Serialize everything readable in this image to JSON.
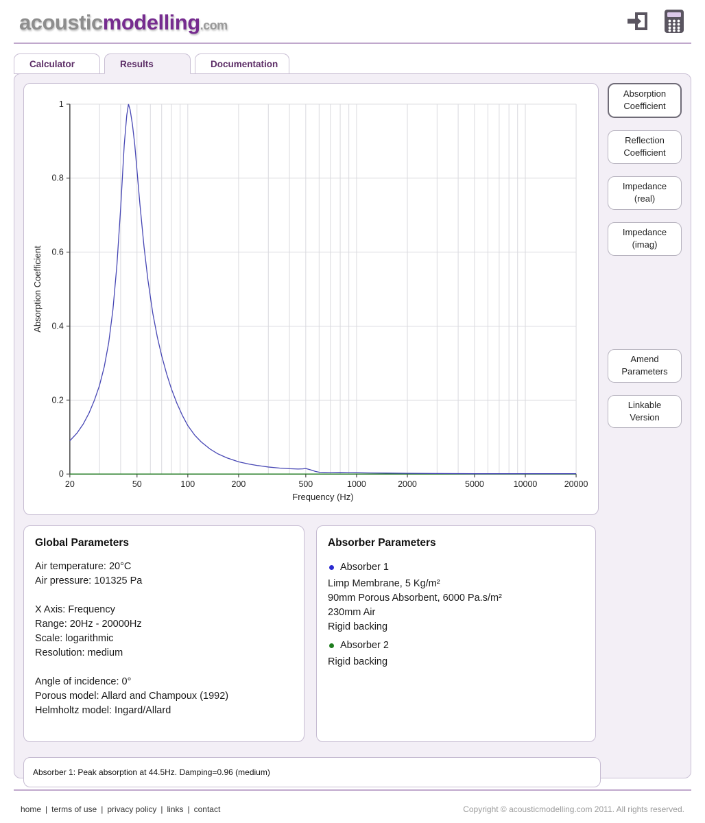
{
  "header": {
    "logo": {
      "part1": "acoustic",
      "part2": "modelling",
      "part3": ".com"
    },
    "icons": [
      {
        "name": "login-icon"
      },
      {
        "name": "calculator-icon"
      }
    ]
  },
  "theme": {
    "accent_purple": "#5e3a6e",
    "tab_text_purple": "#5c2d66",
    "logo_purple": "#762c8f",
    "panel_background": "#f3eff6",
    "absorber1_blue": "#4646b4",
    "absorber2_green": "#1e7d1e"
  },
  "tabs": [
    {
      "label": "Calculator",
      "active": false
    },
    {
      "label": "Results",
      "active": true
    },
    {
      "label": "Documentation",
      "active": false
    }
  ],
  "sidebar": {
    "view_buttons": [
      {
        "line1": "Absorption",
        "line2": "Coefficient",
        "active": true
      },
      {
        "line1": "Reflection",
        "line2": "Coefficient",
        "active": false
      },
      {
        "line1": "Impedance",
        "line2": "(real)",
        "active": false
      },
      {
        "line1": "Impedance",
        "line2": "(imag)",
        "active": false
      }
    ],
    "action_buttons": [
      {
        "line1": "Amend",
        "line2": "Parameters"
      },
      {
        "line1": "Linkable",
        "line2": "Version"
      }
    ]
  },
  "chart_data": {
    "type": "line",
    "title": "",
    "xlabel": "Frequency (Hz)",
    "ylabel": "Absorption Coefficient",
    "x_scale": "log",
    "xlim": [
      20,
      20000
    ],
    "ylim": [
      0,
      1
    ],
    "grid": true,
    "x_ticks": [
      20,
      50,
      100,
      200,
      500,
      1000,
      2000,
      5000,
      10000,
      20000
    ],
    "x_tick_labels": [
      "20",
      "50",
      "100",
      "200",
      "500",
      "1000",
      "2000",
      "5000",
      "10000",
      "20000"
    ],
    "y_ticks": [
      0,
      0.2,
      0.4,
      0.6,
      0.8,
      1
    ],
    "series": [
      {
        "name": "Absorber 1",
        "color": "#4646b4",
        "peak_frequency_hz": 44.5,
        "peak_value": 1.0,
        "x": [
          20,
          22,
          24,
          26,
          28,
          30,
          32,
          34,
          36,
          38,
          40,
          42,
          43.5,
          44.5,
          45.5,
          47,
          48.5,
          50,
          52,
          55,
          58,
          62,
          66,
          70,
          75,
          80,
          86,
          93,
          100,
          110,
          120,
          135,
          150,
          170,
          200,
          230,
          260,
          300,
          350,
          400,
          450,
          480,
          500,
          520,
          545,
          570,
          600,
          650,
          700,
          800,
          900,
          1000,
          1200,
          1500,
          2000,
          3000,
          5000,
          10000,
          20000
        ],
        "y": [
          0.09,
          0.11,
          0.135,
          0.165,
          0.2,
          0.24,
          0.29,
          0.355,
          0.445,
          0.565,
          0.72,
          0.89,
          0.97,
          1.0,
          0.985,
          0.945,
          0.89,
          0.82,
          0.73,
          0.615,
          0.525,
          0.435,
          0.37,
          0.32,
          0.27,
          0.23,
          0.192,
          0.158,
          0.131,
          0.105,
          0.087,
          0.068,
          0.055,
          0.044,
          0.033,
          0.027,
          0.023,
          0.019,
          0.016,
          0.0145,
          0.0135,
          0.014,
          0.015,
          0.013,
          0.01,
          0.007,
          0.005,
          0.0045,
          0.004,
          0.0045,
          0.004,
          0.0035,
          0.003,
          0.0025,
          0.002,
          0.0015,
          0.001,
          0.001,
          0.001
        ]
      },
      {
        "name": "Absorber 2",
        "color": "#1e7d1e",
        "x": [
          20,
          20000
        ],
        "y": [
          0,
          0
        ]
      }
    ]
  },
  "global_parameters": {
    "title": "Global Parameters",
    "group1": [
      "Air temperature: 20°C",
      "Air pressure: 101325 Pa"
    ],
    "group2": [
      "X Axis: Frequency",
      "Range: 20Hz - 20000Hz",
      "Scale: logarithmic",
      "Resolution: medium"
    ],
    "group3": [
      "Angle of incidence: 0°",
      "Porous model: Allard and Champoux (1992)",
      "Helmholtz model: Ingard/Allard"
    ]
  },
  "absorber_parameters": {
    "title": "Absorber Parameters",
    "absorbers": [
      {
        "name": "Absorber 1",
        "bullet_color": "#2a2ad0",
        "layers": [
          "Limp Membrane, 5 Kg/m²",
          "90mm Porous Absorbent, 6000 Pa.s/m²",
          "230mm Air",
          "Rigid backing"
        ]
      },
      {
        "name": "Absorber 2",
        "bullet_color": "#1e7d1e",
        "layers": [
          "Rigid backing"
        ]
      }
    ]
  },
  "status": {
    "text": "Absorber 1: Peak absorption at 44.5Hz. Damping=0.96 (medium)"
  },
  "footer": {
    "links": [
      "home",
      "terms of use",
      "privacy policy",
      "links",
      "contact"
    ],
    "separator": "|",
    "copyright": "Copyright © acousticmodelling.com 2011. All rights reserved."
  }
}
